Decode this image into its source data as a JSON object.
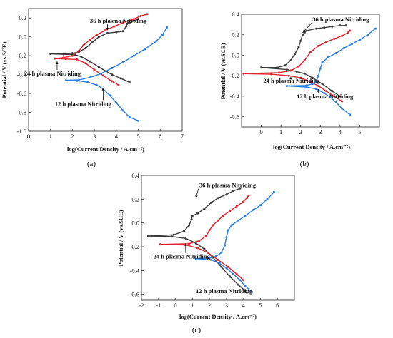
{
  "colors": {
    "black_series": "#3a3a3a",
    "red_series": "#e0202a",
    "blue_series": "#2a7de0"
  },
  "chart_data": [
    {
      "panel_label": "(a)",
      "type": "line",
      "xlabel": "log(Current Density / A.cm⁻²)",
      "ylabel": "Potential / V (vs.SCE)",
      "xlim": [
        0,
        7
      ],
      "ylim": [
        -1.0,
        0.3
      ],
      "xticks": [
        "0",
        "1",
        "2",
        "3",
        "4",
        "5",
        "6",
        "7"
      ],
      "yticks": [
        "-1.0",
        "-0.8",
        "-0.6",
        "-0.4",
        "-0.2",
        "0.0",
        "0.2"
      ],
      "annotations": [
        {
          "text": "36 h plasma Nitriding",
          "target": "black",
          "at": [
            2.8,
            0.15
          ],
          "to": [
            3.6,
            0.07
          ]
        },
        {
          "text": "24 h plasma Nitriding",
          "target": "red",
          "at": [
            -0.2,
            -0.41
          ],
          "to": [
            1.3,
            -0.26
          ]
        },
        {
          "text": "12 h plasma Nitriding",
          "target": "blue",
          "at": [
            1.2,
            -0.73
          ],
          "to": [
            3.4,
            -0.54
          ]
        }
      ],
      "series": [
        {
          "color": "black",
          "points": [
            [
              4.6,
              -0.48
            ],
            [
              4.2,
              -0.44
            ],
            [
              3.8,
              -0.4
            ],
            [
              3.2,
              -0.32
            ],
            [
              2.8,
              -0.26
            ],
            [
              2.4,
              -0.21
            ],
            [
              2.1,
              -0.19
            ],
            [
              1.6,
              -0.185
            ],
            [
              1.0,
              -0.18
            ],
            [
              1.6,
              -0.18
            ],
            [
              2.0,
              -0.175
            ],
            [
              2.3,
              -0.16
            ],
            [
              2.6,
              -0.12
            ],
            [
              2.9,
              -0.06
            ],
            [
              3.2,
              0.0
            ],
            [
              3.6,
              0.04
            ],
            [
              4.0,
              0.05
            ],
            [
              4.3,
              0.06
            ],
            [
              4.45,
              0.11
            ],
            [
              4.5,
              0.14
            ],
            [
              4.6,
              0.15
            ],
            [
              4.8,
              0.17
            ],
            [
              5.0,
              0.19
            ]
          ]
        },
        {
          "color": "red",
          "points": [
            [
              4.1,
              -0.51
            ],
            [
              3.8,
              -0.47
            ],
            [
              3.4,
              -0.41
            ],
            [
              3.0,
              -0.35
            ],
            [
              2.6,
              -0.28
            ],
            [
              2.2,
              -0.24
            ],
            [
              1.7,
              -0.235
            ],
            [
              1.2,
              -0.23
            ],
            [
              1.6,
              -0.22
            ],
            [
              2.0,
              -0.2
            ],
            [
              2.3,
              -0.15
            ],
            [
              2.5,
              -0.09
            ],
            [
              2.8,
              -0.03
            ],
            [
              3.1,
              0.02
            ],
            [
              3.5,
              0.07
            ],
            [
              3.9,
              0.11
            ],
            [
              4.3,
              0.15
            ],
            [
              4.8,
              0.19
            ],
            [
              5.1,
              0.22
            ],
            [
              5.4,
              0.24
            ]
          ]
        },
        {
          "color": "blue",
          "points": [
            [
              5.0,
              -0.89
            ],
            [
              4.6,
              -0.85
            ],
            [
              4.3,
              -0.78
            ],
            [
              4.0,
              -0.7
            ],
            [
              3.7,
              -0.62
            ],
            [
              3.4,
              -0.55
            ],
            [
              3.1,
              -0.51
            ],
            [
              2.7,
              -0.48
            ],
            [
              2.2,
              -0.465
            ],
            [
              1.7,
              -0.46
            ],
            [
              2.3,
              -0.455
            ],
            [
              2.8,
              -0.43
            ],
            [
              3.3,
              -0.39
            ],
            [
              3.8,
              -0.33
            ],
            [
              4.3,
              -0.27
            ],
            [
              4.8,
              -0.2
            ],
            [
              5.3,
              -0.13
            ],
            [
              5.8,
              -0.05
            ],
            [
              6.1,
              0.02
            ],
            [
              6.3,
              0.1
            ]
          ]
        }
      ]
    },
    {
      "panel_label": "(b)",
      "type": "line",
      "xlabel": "log(Current Density / A.cm⁻²)",
      "ylabel": "Potential / V (vs.SCE)",
      "xlim": [
        -1,
        6
      ],
      "ylim": [
        -0.7,
        0.4
      ],
      "xticks": [
        "0",
        "1",
        "2",
        "3",
        "4",
        "5"
      ],
      "yticks": [
        "-0.6",
        "-0.4",
        "-0.2",
        "0.0",
        "0.2",
        "0.4"
      ],
      "annotations": [
        {
          "text": "36 h plasma Nitriding",
          "target": "black",
          "at": [
            2.6,
            0.33
          ],
          "to": [
            2.1,
            0.22
          ]
        },
        {
          "text": "24 h plasma Nitriding",
          "target": "red",
          "at": [
            0.1,
            -0.27
          ],
          "to": [
            1.5,
            -0.21
          ]
        },
        {
          "text": "12 h plasma Nitriding",
          "target": "blue",
          "at": [
            1.8,
            -0.42
          ],
          "to": [
            2.9,
            -0.33
          ]
        }
      ],
      "series": [
        {
          "color": "black",
          "points": [
            [
              4.0,
              -0.4
            ],
            [
              3.6,
              -0.35
            ],
            [
              3.1,
              -0.28
            ],
            [
              2.6,
              -0.22
            ],
            [
              2.2,
              -0.18
            ],
            [
              1.8,
              -0.16
            ],
            [
              1.3,
              -0.14
            ],
            [
              0.0,
              -0.12
            ],
            [
              0.8,
              -0.12
            ],
            [
              1.2,
              -0.1
            ],
            [
              1.5,
              -0.05
            ],
            [
              1.7,
              0.01
            ],
            [
              1.9,
              0.08
            ],
            [
              2.0,
              0.14
            ],
            [
              2.1,
              0.2
            ],
            [
              2.2,
              0.22
            ],
            [
              2.3,
              0.24
            ],
            [
              2.8,
              0.26
            ],
            [
              3.2,
              0.27
            ],
            [
              3.6,
              0.28
            ],
            [
              4.0,
              0.29
            ],
            [
              4.3,
              0.29
            ]
          ]
        },
        {
          "color": "red",
          "points": [
            [
              4.1,
              -0.45
            ],
            [
              3.7,
              -0.4
            ],
            [
              3.3,
              -0.35
            ],
            [
              2.9,
              -0.3
            ],
            [
              2.5,
              -0.26
            ],
            [
              2.0,
              -0.22
            ],
            [
              1.4,
              -0.2
            ],
            [
              0.5,
              -0.185
            ],
            [
              -0.9,
              -0.18
            ],
            [
              0.9,
              -0.17
            ],
            [
              1.5,
              -0.15
            ],
            [
              1.9,
              -0.11
            ],
            [
              2.2,
              -0.05
            ],
            [
              2.5,
              0.03
            ],
            [
              2.9,
              0.09
            ],
            [
              3.3,
              0.13
            ],
            [
              3.7,
              0.16
            ],
            [
              4.1,
              0.19
            ],
            [
              4.4,
              0.22
            ],
            [
              4.5,
              0.24
            ]
          ]
        },
        {
          "color": "blue",
          "points": [
            [
              4.5,
              -0.58
            ],
            [
              4.1,
              -0.52
            ],
            [
              3.8,
              -0.46
            ],
            [
              3.5,
              -0.41
            ],
            [
              3.2,
              -0.37
            ],
            [
              2.8,
              -0.33
            ],
            [
              2.3,
              -0.31
            ],
            [
              1.3,
              -0.3
            ],
            [
              2.3,
              -0.295
            ],
            [
              2.6,
              -0.28
            ],
            [
              2.8,
              -0.25
            ],
            [
              2.9,
              -0.2
            ],
            [
              3.0,
              -0.13
            ],
            [
              3.1,
              -0.07
            ],
            [
              3.4,
              -0.02
            ],
            [
              3.8,
              0.02
            ],
            [
              4.2,
              0.07
            ],
            [
              4.6,
              0.11
            ],
            [
              5.0,
              0.15
            ],
            [
              5.4,
              0.2
            ],
            [
              5.8,
              0.26
            ]
          ]
        }
      ]
    },
    {
      "panel_label": "(c)",
      "type": "line",
      "xlabel": "log(Current Density / A.cm⁻²)",
      "ylabel": "Potential / V (vs.SCE)",
      "xlim": [
        -2,
        7
      ],
      "ylim": [
        -0.65,
        0.4
      ],
      "xticks": [
        "-2",
        "-1",
        "0",
        "1",
        "2",
        "3",
        "4",
        "5",
        "6"
      ],
      "yticks": [
        "-0.6",
        "-0.4",
        "-0.2",
        "0.0",
        "0.2",
        "0.4"
      ],
      "annotations": [
        {
          "text": "36 h plasma Nitriding",
          "target": "black",
          "at": [
            1.4,
            0.3
          ],
          "to": [
            1.2,
            0.21
          ]
        },
        {
          "text": "24 h plasma Nitriding",
          "target": "red",
          "at": [
            -1.3,
            -0.3
          ],
          "to": [
            0.6,
            -0.17
          ]
        },
        {
          "text": "12 h plasma Nitriding",
          "target": "blue",
          "at": [
            1.2,
            -0.59
          ],
          "to": [
            4.2,
            -0.57
          ]
        }
      ],
      "series": [
        {
          "color": "black",
          "points": [
            [
              4.1,
              -0.57
            ],
            [
              3.7,
              -0.52
            ],
            [
              3.2,
              -0.45
            ],
            [
              2.7,
              -0.37
            ],
            [
              2.2,
              -0.29
            ],
            [
              1.7,
              -0.22
            ],
            [
              1.2,
              -0.17
            ],
            [
              0.6,
              -0.13
            ],
            [
              -0.2,
              -0.115
            ],
            [
              -1.6,
              -0.11
            ],
            [
              -0.1,
              -0.1
            ],
            [
              0.5,
              -0.07
            ],
            [
              0.8,
              -0.02
            ],
            [
              0.95,
              0.03
            ],
            [
              1.0,
              0.06
            ],
            [
              1.3,
              0.08
            ],
            [
              1.7,
              0.12
            ],
            [
              2.1,
              0.17
            ],
            [
              2.5,
              0.21
            ],
            [
              3.0,
              0.24
            ],
            [
              3.4,
              0.27
            ],
            [
              3.8,
              0.29
            ]
          ]
        },
        {
          "color": "red",
          "points": [
            [
              4.0,
              -0.48
            ],
            [
              3.6,
              -0.43
            ],
            [
              3.1,
              -0.37
            ],
            [
              2.5,
              -0.31
            ],
            [
              1.9,
              -0.25
            ],
            [
              1.3,
              -0.21
            ],
            [
              0.6,
              -0.185
            ],
            [
              -0.9,
              -0.18
            ],
            [
              0.8,
              -0.175
            ],
            [
              1.4,
              -0.15
            ],
            [
              1.8,
              -0.11
            ],
            [
              2.0,
              -0.06
            ],
            [
              2.2,
              -0.02
            ],
            [
              2.5,
              0.02
            ],
            [
              2.8,
              0.06
            ],
            [
              3.2,
              0.1
            ],
            [
              3.6,
              0.14
            ],
            [
              4.0,
              0.18
            ],
            [
              4.2,
              0.21
            ],
            [
              4.3,
              0.23
            ]
          ]
        },
        {
          "color": "blue",
          "points": [
            [
              4.5,
              -0.58
            ],
            [
              4.1,
              -0.53
            ],
            [
              3.8,
              -0.48
            ],
            [
              3.4,
              -0.43
            ],
            [
              3.0,
              -0.38
            ],
            [
              2.6,
              -0.34
            ],
            [
              2.1,
              -0.31
            ],
            [
              1.2,
              -0.3
            ],
            [
              2.0,
              -0.295
            ],
            [
              2.4,
              -0.28
            ],
            [
              2.7,
              -0.25
            ],
            [
              2.9,
              -0.19
            ],
            [
              3.0,
              -0.12
            ],
            [
              3.1,
              -0.06
            ],
            [
              3.3,
              -0.02
            ],
            [
              3.7,
              0.02
            ],
            [
              4.1,
              0.06
            ],
            [
              4.6,
              0.11
            ],
            [
              5.0,
              0.15
            ],
            [
              5.4,
              0.2
            ],
            [
              5.8,
              0.26
            ]
          ]
        }
      ]
    }
  ]
}
